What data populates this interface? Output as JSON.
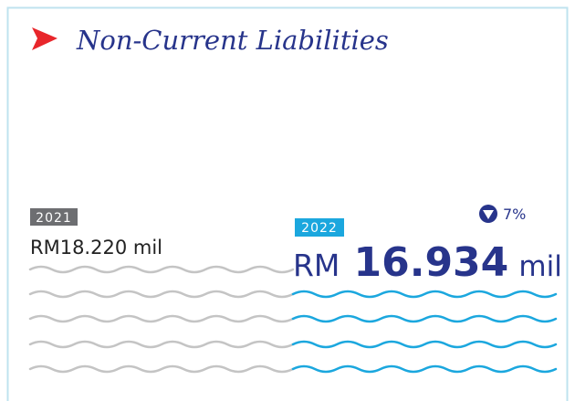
{
  "header": {
    "title": "Non-Current Liabilities"
  },
  "previous": {
    "year": "2021",
    "amount": "RM18.220 mil"
  },
  "current": {
    "year": "2022",
    "currency": "RM",
    "amount": "16.934",
    "unit": "mil",
    "change": "7%"
  }
}
